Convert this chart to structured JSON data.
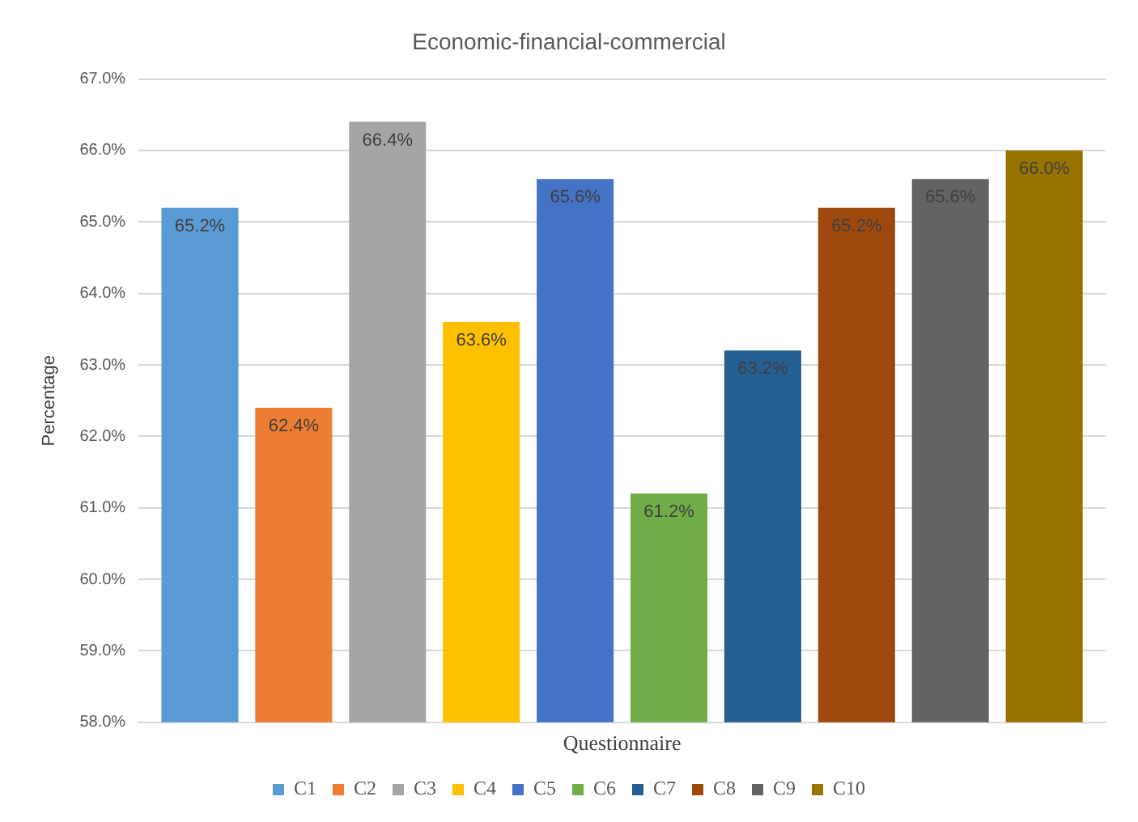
{
  "chart_data": {
    "type": "bar",
    "title": "Economic-financial-commercial",
    "xlabel": "Questionnaire",
    "ylabel": "Percentage",
    "categories": [
      null
    ],
    "series": [
      {
        "name": "C1",
        "color": "#5b9bd5",
        "values": [
          65.2
        ],
        "value_labels": [
          "65.2%"
        ]
      },
      {
        "name": "C2",
        "color": "#ed7d31",
        "values": [
          62.4
        ],
        "value_labels": [
          "62.4%"
        ]
      },
      {
        "name": "C3",
        "color": "#a5a5a5",
        "values": [
          66.4
        ],
        "value_labels": [
          "66.4%"
        ]
      },
      {
        "name": "C4",
        "color": "#ffc000",
        "values": [
          63.6
        ],
        "value_labels": [
          "63.6%"
        ]
      },
      {
        "name": "C5",
        "color": "#4472c4",
        "values": [
          65.6
        ],
        "value_labels": [
          "65.6%"
        ]
      },
      {
        "name": "C6",
        "color": "#70ad47",
        "values": [
          61.2
        ],
        "value_labels": [
          "61.2%"
        ]
      },
      {
        "name": "C7",
        "color": "#255e91",
        "values": [
          63.2
        ],
        "value_labels": [
          "63.2%"
        ]
      },
      {
        "name": "C8",
        "color": "#9e480e",
        "values": [
          65.2
        ],
        "value_labels": [
          "65.2%"
        ]
      },
      {
        "name": "C9",
        "color": "#636363",
        "values": [
          65.6
        ],
        "value_labels": [
          "65.6%"
        ]
      },
      {
        "name": "C10",
        "color": "#997300",
        "values": [
          66.0
        ],
        "value_labels": [
          "66.0%"
        ]
      }
    ],
    "ylim": [
      58,
      67
    ],
    "yticks": [
      {
        "value": 58,
        "label": "58.0%"
      },
      {
        "value": 59,
        "label": "59.0%"
      },
      {
        "value": 60,
        "label": "60.0%"
      },
      {
        "value": 61,
        "label": "61.0%"
      },
      {
        "value": 62,
        "label": "62.0%"
      },
      {
        "value": 63,
        "label": "63.0%"
      },
      {
        "value": 64,
        "label": "64.0%"
      },
      {
        "value": 65,
        "label": "65.0%"
      },
      {
        "value": 66,
        "label": "66.0%"
      },
      {
        "value": 67,
        "label": "67.0%"
      }
    ],
    "grid": "y",
    "legend": "bottom"
  }
}
